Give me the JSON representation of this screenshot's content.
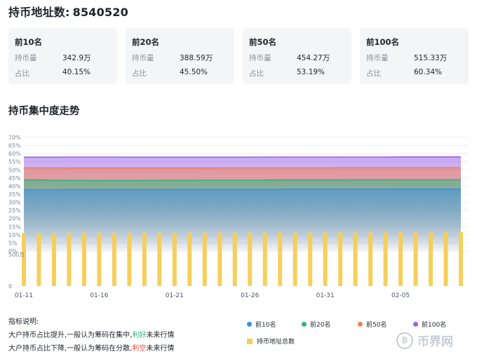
{
  "header": {
    "title": "持币地址数:",
    "count": "8540520"
  },
  "cards": [
    {
      "title": "前10名",
      "holding_label": "持币量",
      "holding": "342.9万",
      "ratio_label": "占比",
      "ratio": "40.15%"
    },
    {
      "title": "前20名",
      "holding_label": "持币量",
      "holding": "388.59万",
      "ratio_label": "占比",
      "ratio": "45.50%"
    },
    {
      "title": "前50名",
      "holding_label": "持币量",
      "holding": "454.27万",
      "ratio_label": "占比",
      "ratio": "53.19%"
    },
    {
      "title": "前100名",
      "holding_label": "持币量",
      "holding": "515.33万",
      "ratio_label": "占比",
      "ratio": "60.34%"
    }
  ],
  "section_title": "持币集中度走势",
  "notes": {
    "heading": "指标说明:",
    "line1_prefix": "大户持币占比提升,一般认为筹码在集中,",
    "line1_highlight": "利好",
    "line1_suffix": "未来行情",
    "line2_prefix": "大户持币占比下降,一般认为筹码在分散,",
    "line2_highlight": "利空",
    "line2_suffix": "未来行情"
  },
  "watermark": {
    "text": "币界网"
  },
  "colors": {
    "top10": "#3b8fe6",
    "top20": "#2fb57a",
    "top50": "#ef7f57",
    "top100": "#9a63e6",
    "bar": "#f6cf5b"
  },
  "chart_data": [
    {
      "type": "area",
      "x_tick_labels": [
        "01-11",
        "01-16",
        "01-21",
        "01-26",
        "01-31",
        "02-05"
      ],
      "y_tick_labels": [
        "0%",
        "5%",
        "10%",
        "15%",
        "20%",
        "25%",
        "30%",
        "35%",
        "40%",
        "45%",
        "50%",
        "55%",
        "60%",
        "65%",
        "70%"
      ],
      "ylim": [
        0,
        70
      ],
      "grid": true,
      "legend_position": "bottom-right",
      "series": [
        {
          "name": "前10名",
          "values": [
            37.8,
            37.8,
            37.8,
            37.9,
            37.9,
            37.9,
            37.9,
            37.9,
            37.9,
            37.9,
            38.0,
            38.0,
            38.0,
            38.0,
            38.0,
            38.0,
            38.0,
            38.0,
            38.1,
            38.1,
            38.1,
            38.1,
            38.1,
            38.1,
            38.1,
            38.2,
            38.2,
            38.2,
            38.2,
            38.2
          ]
        },
        {
          "name": "前20名",
          "values": [
            43.8,
            43.8,
            43.6,
            43.5,
            43.5,
            43.4,
            43.4,
            43.4,
            43.5,
            43.5,
            43.6,
            43.6,
            43.7,
            43.7,
            43.7,
            43.7,
            43.7,
            43.8,
            43.8,
            43.8,
            43.8,
            43.8,
            43.9,
            43.9,
            43.9,
            43.9,
            43.9,
            43.9,
            43.9,
            43.9
          ]
        },
        {
          "name": "前50名",
          "values": [
            51.2,
            51.2,
            51.2,
            51.1,
            51.1,
            51.1,
            51.1,
            51.1,
            51.1,
            51.1,
            51.1,
            51.1,
            51.1,
            51.2,
            51.2,
            51.2,
            51.2,
            51.2,
            51.2,
            51.2,
            51.2,
            51.3,
            51.3,
            51.3,
            51.3,
            51.3,
            51.3,
            51.3,
            51.3,
            51.3
          ]
        },
        {
          "name": "前100名",
          "values": [
            57.8,
            57.8,
            57.8,
            57.9,
            57.9,
            57.9,
            57.9,
            57.8,
            57.8,
            57.8,
            57.8,
            57.8,
            57.8,
            57.8,
            57.8,
            57.8,
            57.9,
            57.9,
            57.9,
            57.9,
            57.9,
            57.9,
            57.9,
            57.9,
            57.9,
            58.0,
            58.0,
            58.0,
            58.0,
            58.0
          ]
        }
      ]
    },
    {
      "type": "bar",
      "y_tick_labels": [
        "0",
        "500万"
      ],
      "ylim": [
        0,
        5100000
      ],
      "series": [
        {
          "name": "持币地址总数",
          "values": [
            8400000,
            8405000,
            8410000,
            8414000,
            8418000,
            8422000,
            8426000,
            8430000,
            8434000,
            8438000,
            8442000,
            8446000,
            8450000,
            8454000,
            8458000,
            8462000,
            8466000,
            8470000,
            8474000,
            8478000,
            8482000,
            8486000,
            8490000,
            8494000,
            8498000,
            8502000,
            8506000,
            8515000,
            8528000,
            8540520
          ]
        }
      ]
    }
  ]
}
